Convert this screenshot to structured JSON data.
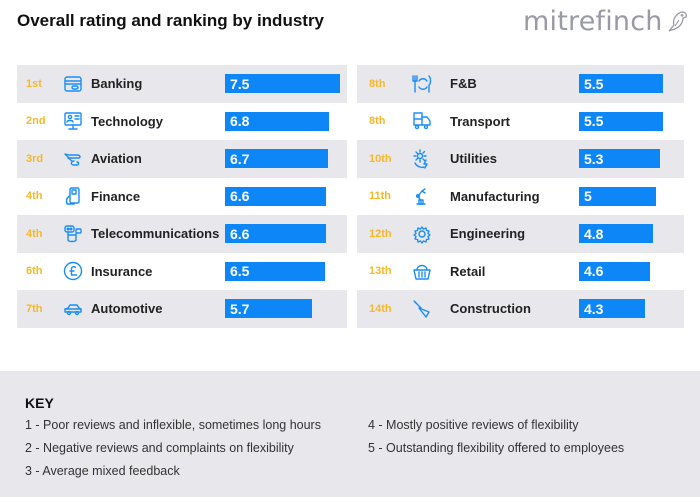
{
  "header": {
    "title": "Overall rating and ranking by industry",
    "logo_text": "mitrefinch"
  },
  "colors": {
    "bar": "#0d86f8",
    "rank": "#f7b829",
    "icon": "#1a8ef5",
    "row_shade": "#e8e7ec"
  },
  "chart_data": {
    "type": "bar",
    "orientation": "horizontal",
    "title": "Overall rating and ranking by industry",
    "xlabel": "",
    "ylabel": "",
    "xlim": [
      0,
      7.5
    ],
    "grid": false,
    "categories": [
      "Banking",
      "Technology",
      "Aviation",
      "Finance",
      "Telecommunications",
      "Insurance",
      "Automotive",
      "F&B",
      "Transport",
      "Utilities",
      "Manufacturing",
      "Engineering",
      "Retail",
      "Construction"
    ],
    "values": [
      7.5,
      6.8,
      6.7,
      6.6,
      6.6,
      6.5,
      5.7,
      5.5,
      5.5,
      5.3,
      5,
      4.8,
      4.6,
      4.3
    ],
    "value_labels": [
      "7.5",
      "6.8",
      "6.7",
      "6.6",
      "6.6",
      "6.5",
      "5.7",
      "5.5",
      "5.5",
      "5.3",
      "5",
      "4.8",
      "4.6",
      "4.3"
    ],
    "ranks": [
      "1st",
      "2nd",
      "3rd",
      "4th",
      "4th",
      "6th",
      "7th",
      "8th",
      "8th",
      "10th",
      "11th",
      "12th",
      "13th",
      "14th"
    ],
    "icons": [
      "credit-card-icon",
      "computer-users-icon",
      "airplane-icon",
      "mobile-payment-icon",
      "chat-phone-icon",
      "pound-coin-icon",
      "car-icon",
      "cutlery-icon",
      "truck-icon",
      "sun-bolt-icon",
      "robot-arm-icon",
      "gear-icon",
      "basket-icon",
      "trowel-icon"
    ]
  },
  "key": {
    "title": "KEY",
    "items": [
      "1 - Poor reviews and inflexible, sometimes long hours",
      "2 - Negative reviews and complaints on flexibility",
      "3 - Average mixed feedback",
      "4 - Mostly positive reviews of flexibility",
      "5 - Outstanding flexibility offered to employees"
    ]
  }
}
